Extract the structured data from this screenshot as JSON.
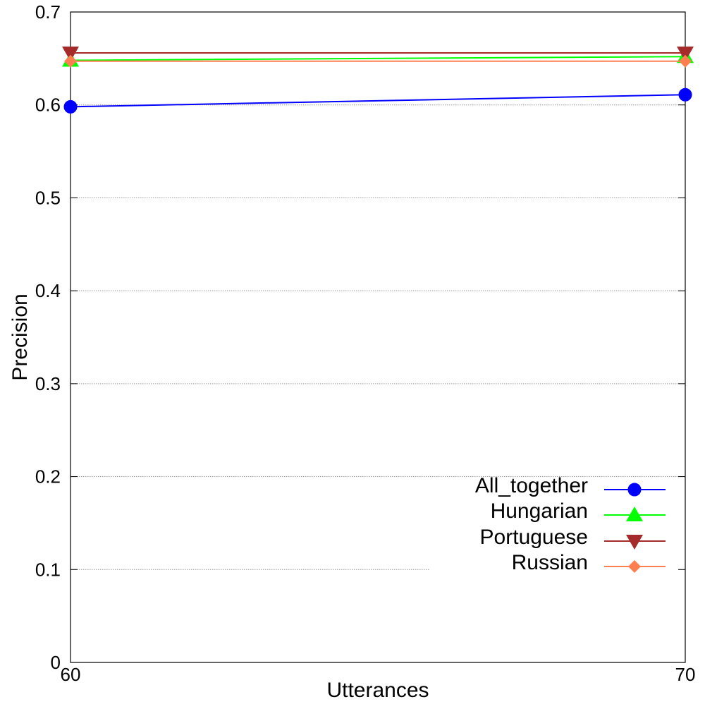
{
  "chart_data": {
    "type": "line",
    "title": "",
    "xlabel": "Utterances",
    "ylabel": "Precision",
    "x": [
      60,
      70
    ],
    "xlim": [
      60,
      70
    ],
    "ylim": [
      0,
      0.7
    ],
    "x_ticks": [
      "60",
      "70"
    ],
    "y_ticks": [
      "0",
      "0.1",
      "0.2",
      "0.3",
      "0.4",
      "0.5",
      "0.6",
      "0.7"
    ],
    "grid": "horizontal dotted",
    "legend_position": "bottom-right",
    "series": [
      {
        "name": "All_together",
        "values": [
          0.598,
          0.611
        ],
        "color": "#0000ff",
        "marker": "circle"
      },
      {
        "name": "Hungarian",
        "values": [
          0.648,
          0.652
        ],
        "color": "#00ff00",
        "marker": "triangle-up"
      },
      {
        "name": "Portuguese",
        "values": [
          0.656,
          0.656
        ],
        "color": "#a52a2a",
        "marker": "triangle-down"
      },
      {
        "name": "Russian",
        "values": [
          0.647,
          0.647
        ],
        "color": "#ff7f50",
        "marker": "diamond"
      }
    ]
  }
}
